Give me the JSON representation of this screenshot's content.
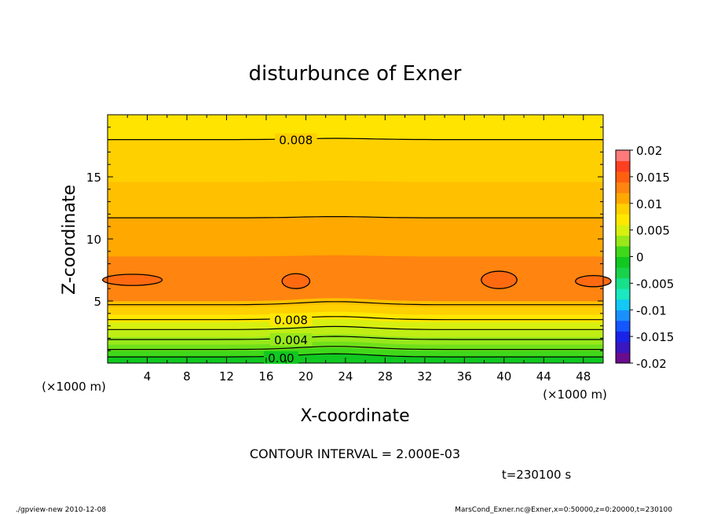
{
  "chart_data": {
    "type": "contour",
    "title": "disturbunce of Exner",
    "xlabel": "X-coordinate",
    "ylabel": "Z-coordinate",
    "x_unit": "(×1000 m)",
    "y_unit": "(×1000 m)",
    "xlim": [
      0,
      50
    ],
    "ylim": [
      0,
      20
    ],
    "x_ticks": [
      "4",
      "8",
      "12",
      "16",
      "20",
      "24",
      "28",
      "32",
      "36",
      "40",
      "44",
      "48"
    ],
    "y_ticks": [
      "5",
      "10",
      "15"
    ],
    "contour_interval_text": "CONTOUR INTERVAL = 2.000E-03",
    "time_text": "t=230100 s",
    "footer_left": "./gpview-new  2010-12-08",
    "footer_right": "MarsCond_Exner.nc@Exner,x=0:50000,z=0:20000,t=230100",
    "contour_labels": [
      {
        "text": "0.008",
        "x": 19,
        "z": 18.0
      },
      {
        "text": "0.008",
        "x": 18.5,
        "z": 3.5
      },
      {
        "text": "0.004",
        "x": 18.5,
        "z": 1.9
      },
      {
        "text": "0.00",
        "x": 17.5,
        "z": 0.45
      }
    ],
    "colorbar": {
      "ticks": [
        "0.02",
        "0.015",
        "0.01",
        "0.005",
        "0",
        "-0.005",
        "-0.01",
        "-0.015",
        "-0.02"
      ],
      "levels": [
        -0.02,
        -0.018,
        -0.016,
        -0.014,
        -0.012,
        -0.01,
        -0.008,
        -0.006,
        -0.004,
        -0.002,
        0,
        0.002,
        0.004,
        0.006,
        0.008,
        0.01,
        0.012,
        0.014,
        0.016,
        0.018,
        0.02
      ],
      "colors": [
        "#6a0c8e",
        "#3a16c0",
        "#1a22e8",
        "#1556ff",
        "#1a90ff",
        "#13c8f5",
        "#1ae8c0",
        "#17e08a",
        "#19d24a",
        "#10c820",
        "#40d81a",
        "#98e81a",
        "#d8f010",
        "#ffe800",
        "#ffd000",
        "#ffa800",
        "#ff8410",
        "#ff6010",
        "#ff4020",
        "#ff7a7a"
      ]
    },
    "bands": [
      {
        "z0": 0.0,
        "z1": 0.5,
        "color": "#10c820"
      },
      {
        "z0": 0.5,
        "z1": 1.0,
        "color": "#40d81a"
      },
      {
        "z0": 1.0,
        "z1": 1.5,
        "color": "#70e01a"
      },
      {
        "z0": 1.5,
        "z1": 2.1,
        "color": "#98e81a"
      },
      {
        "z0": 2.1,
        "z1": 2.7,
        "color": "#c0ee14"
      },
      {
        "z0": 2.7,
        "z1": 3.3,
        "color": "#d8f010"
      },
      {
        "z0": 3.3,
        "z1": 3.9,
        "color": "#ffe800"
      },
      {
        "z0": 3.9,
        "z1": 4.5,
        "color": "#ffd000"
      },
      {
        "z0": 4.5,
        "z1": 5.0,
        "color": "#ffc000"
      },
      {
        "z0": 5.0,
        "z1": 8.6,
        "color": "#ff8410"
      },
      {
        "z0": 8.6,
        "z1": 11.7,
        "color": "#ffa800"
      },
      {
        "z0": 11.7,
        "z1": 14.6,
        "color": "#ffc000"
      },
      {
        "z0": 14.6,
        "z1": 18.0,
        "color": "#ffd000"
      },
      {
        "z0": 18.0,
        "z1": 20.0,
        "color": "#ffe400"
      }
    ],
    "contour_lines_z": [
      0.5,
      1.1,
      1.9,
      2.7,
      3.5,
      4.7,
      11.7,
      18.0
    ],
    "cells": [
      {
        "x": 2.5,
        "z": 6.7,
        "rx": 3.0,
        "rz": 0.45
      },
      {
        "x": 19.0,
        "z": 6.6,
        "rx": 1.4,
        "rz": 0.6
      },
      {
        "x": 39.5,
        "z": 6.7,
        "rx": 1.8,
        "rz": 0.7
      },
      {
        "x": 49.0,
        "z": 6.6,
        "rx": 1.8,
        "rz": 0.45
      }
    ]
  }
}
